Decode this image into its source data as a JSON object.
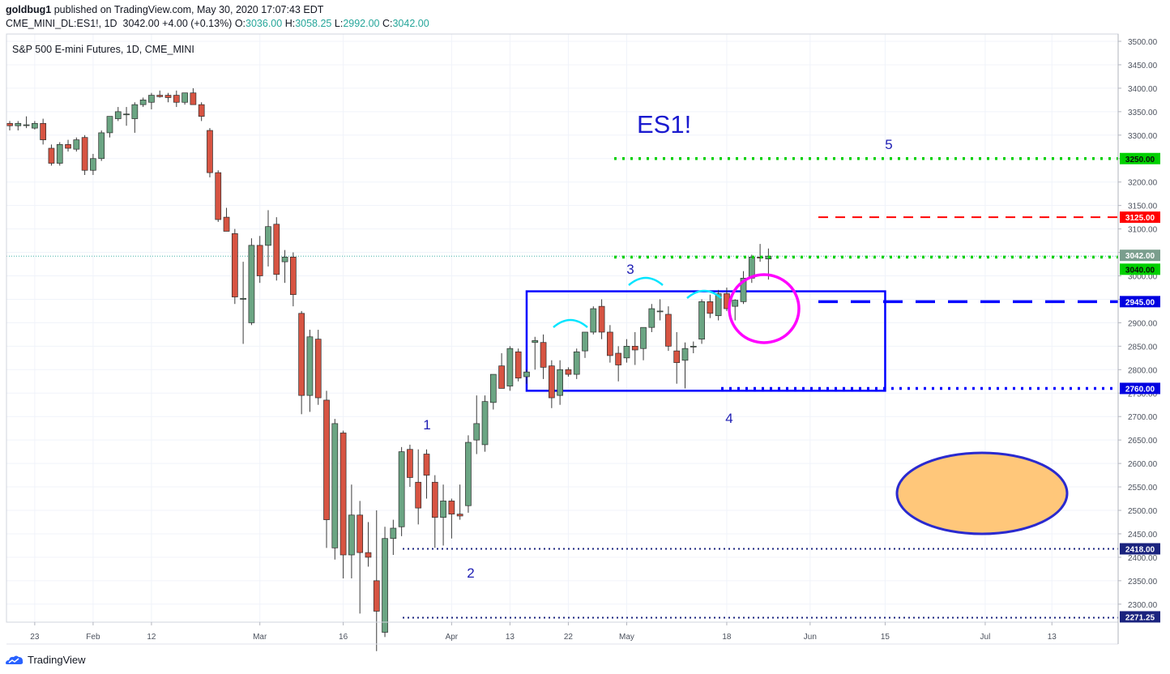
{
  "header": {
    "author": "goldbug1",
    "published_text": "published on TradingView.com, May 30, 2020 17:07:43 EDT",
    "symbol_line": "CME_MINI_DL:ES1!, 1D",
    "last": "3042.00",
    "change": "+4.00 (+0.13%)",
    "o_label": "O:",
    "o_val": "3036.00",
    "h_label": "H:",
    "h_val": "3058.25",
    "l_label": "L:",
    "l_val": "2992.00",
    "c_label": "C:",
    "c_val": "3042.00"
  },
  "footer": {
    "brand": "TradingView"
  },
  "colors": {
    "up": "#6ba583",
    "down": "#d75442",
    "blue": "#0000ff",
    "darkblue": "#1d1dbf",
    "green": "#00d000",
    "red": "#ff0000",
    "cyan": "#00e5ff",
    "magenta": "#ff00ff",
    "orange": "#ffc77a"
  },
  "chart_data": {
    "type": "candlestick",
    "title": "S&P 500 E-mini Futures, 1D, CME_MINI",
    "annotation_title": "ES1!",
    "y_axis": {
      "ylim": [
        2283,
        3513
      ],
      "ticks": [
        2300,
        2350,
        2400,
        2450,
        2500,
        2550,
        2600,
        2650,
        2700,
        2750,
        2800,
        2850,
        2900,
        2950,
        3000,
        3050,
        3100,
        3150,
        3200,
        3250,
        3300,
        3350,
        3400,
        3450,
        3500
      ],
      "tick_labels": [
        "2300.00",
        "2350.00",
        "2400.00",
        "2450.00",
        "2500.00",
        "2550.00",
        "2600.00",
        "2650.00",
        "2700.00",
        "2750.00",
        "2800.00",
        "2850.00",
        "2900.00",
        "2950.00",
        "3000.00",
        "3050.00",
        "3100.00",
        "3150.00",
        "3200.00",
        "3250.00",
        "3300.00",
        "3350.00",
        "3400.00",
        "3450.00",
        "3500.00"
      ]
    },
    "x_axis": {
      "labels": [
        {
          "text": "23",
          "index": 3
        },
        {
          "text": "Feb",
          "index": 10
        },
        {
          "text": "12",
          "index": 17
        },
        {
          "text": "Mar",
          "index": 30
        },
        {
          "text": "16",
          "index": 40
        },
        {
          "text": "Apr",
          "index": 53
        },
        {
          "text": "13",
          "index": 60
        },
        {
          "text": "22",
          "index": 67
        },
        {
          "text": "May",
          "index": 74
        },
        {
          "text": "18",
          "index": 86
        },
        {
          "text": "Jun",
          "index": 96
        },
        {
          "text": "15",
          "index": 105
        },
        {
          "text": "Jul",
          "index": 117
        },
        {
          "text": "13",
          "index": 125
        }
      ],
      "last_index": 127
    },
    "candles": [
      {
        "o": 3325,
        "h": 3330,
        "l": 3310,
        "c": 3320
      },
      {
        "o": 3320,
        "h": 3330,
        "l": 3310,
        "c": 3325
      },
      {
        "o": 3322,
        "h": 3340,
        "l": 3315,
        "c": 3322
      },
      {
        "o": 3315,
        "h": 3330,
        "l": 3312,
        "c": 3325
      },
      {
        "o": 3325,
        "h": 3335,
        "l": 3280,
        "c": 3290
      },
      {
        "o": 3272,
        "h": 3280,
        "l": 3235,
        "c": 3240
      },
      {
        "o": 3240,
        "h": 3285,
        "l": 3235,
        "c": 3280
      },
      {
        "o": 3280,
        "h": 3290,
        "l": 3265,
        "c": 3272
      },
      {
        "o": 3270,
        "h": 3295,
        "l": 3265,
        "c": 3290
      },
      {
        "o": 3295,
        "h": 3300,
        "l": 3215,
        "c": 3225
      },
      {
        "o": 3225,
        "h": 3260,
        "l": 3215,
        "c": 3250
      },
      {
        "o": 3250,
        "h": 3310,
        "l": 3245,
        "c": 3305
      },
      {
        "o": 3305,
        "h": 3340,
        "l": 3295,
        "c": 3340
      },
      {
        "o": 3335,
        "h": 3360,
        "l": 3330,
        "c": 3350
      },
      {
        "o": 3345,
        "h": 3360,
        "l": 3320,
        "c": 3345
      },
      {
        "o": 3335,
        "h": 3370,
        "l": 3305,
        "c": 3365
      },
      {
        "o": 3365,
        "h": 3380,
        "l": 3360,
        "c": 3375
      },
      {
        "o": 3370,
        "h": 3390,
        "l": 3355,
        "c": 3385
      },
      {
        "o": 3385,
        "h": 3395,
        "l": 3380,
        "c": 3382
      },
      {
        "o": 3385,
        "h": 3390,
        "l": 3370,
        "c": 3380
      },
      {
        "o": 3385,
        "h": 3395,
        "l": 3360,
        "c": 3370
      },
      {
        "o": 3370,
        "h": 3390,
        "l": 3365,
        "c": 3390
      },
      {
        "o": 3390,
        "h": 3400,
        "l": 3365,
        "c": 3365
      },
      {
        "o": 3365,
        "h": 3370,
        "l": 3330,
        "c": 3340
      },
      {
        "o": 3310,
        "h": 3315,
        "l": 3210,
        "c": 3220
      },
      {
        "o": 3220,
        "h": 3225,
        "l": 3115,
        "c": 3120
      },
      {
        "o": 3125,
        "h": 3145,
        "l": 3095,
        "c": 3095
      },
      {
        "o": 3090,
        "h": 3100,
        "l": 2940,
        "c": 2955
      },
      {
        "o": 2950,
        "h": 3030,
        "l": 2855,
        "c": 2952
      },
      {
        "o": 2900,
        "h": 3080,
        "l": 2895,
        "c": 3065
      },
      {
        "o": 3065,
        "h": 3085,
        "l": 2985,
        "c": 3000
      },
      {
        "o": 3065,
        "h": 3140,
        "l": 3020,
        "c": 3105
      },
      {
        "o": 3110,
        "h": 3125,
        "l": 2990,
        "c": 3003
      },
      {
        "o": 3030,
        "h": 3055,
        "l": 2985,
        "c": 3040
      },
      {
        "o": 3040,
        "h": 3050,
        "l": 2935,
        "c": 2960
      },
      {
        "o": 2920,
        "h": 2925,
        "l": 2705,
        "c": 2745
      },
      {
        "o": 2745,
        "h": 2885,
        "l": 2710,
        "c": 2870
      },
      {
        "o": 2865,
        "h": 2885,
        "l": 2725,
        "c": 2740
      },
      {
        "o": 2735,
        "h": 2755,
        "l": 2420,
        "c": 2480
      },
      {
        "o": 2420,
        "h": 2695,
        "l": 2395,
        "c": 2685
      },
      {
        "o": 2665,
        "h": 2670,
        "l": 2355,
        "c": 2405
      },
      {
        "o": 2405,
        "h": 2555,
        "l": 2355,
        "c": 2490
      },
      {
        "o": 2490,
        "h": 2520,
        "l": 2280,
        "c": 2410
      },
      {
        "o": 2410,
        "h": 2475,
        "l": 2380,
        "c": 2400
      },
      {
        "o": 2350,
        "h": 2500,
        "l": 2200,
        "c": 2285
      },
      {
        "o": 2240,
        "h": 2465,
        "l": 2230,
        "c": 2440
      },
      {
        "o": 2440,
        "h": 2480,
        "l": 2405,
        "c": 2462
      },
      {
        "o": 2465,
        "h": 2635,
        "l": 2445,
        "c": 2625
      },
      {
        "o": 2630,
        "h": 2640,
        "l": 2550,
        "c": 2570
      },
      {
        "o": 2560,
        "h": 2630,
        "l": 2470,
        "c": 2505
      },
      {
        "o": 2620,
        "h": 2630,
        "l": 2525,
        "c": 2575
      },
      {
        "o": 2560,
        "h": 2575,
        "l": 2420,
        "c": 2485
      },
      {
        "o": 2485,
        "h": 2555,
        "l": 2425,
        "c": 2520
      },
      {
        "o": 2520,
        "h": 2525,
        "l": 2440,
        "c": 2492
      },
      {
        "o": 2492,
        "h": 2555,
        "l": 2480,
        "c": 2488
      },
      {
        "o": 2510,
        "h": 2660,
        "l": 2495,
        "c": 2645
      },
      {
        "o": 2650,
        "h": 2745,
        "l": 2620,
        "c": 2685
      },
      {
        "o": 2640,
        "h": 2745,
        "l": 2625,
        "c": 2732
      },
      {
        "o": 2730,
        "h": 2790,
        "l": 2715,
        "c": 2790
      },
      {
        "o": 2808,
        "h": 2835,
        "l": 2760,
        "c": 2760
      },
      {
        "o": 2765,
        "h": 2850,
        "l": 2755,
        "c": 2845
      },
      {
        "o": 2838,
        "h": 2845,
        "l": 2775,
        "c": 2782
      },
      {
        "o": 2785,
        "h": 2800,
        "l": 2770,
        "c": 2795
      },
      {
        "o": 2858,
        "h": 2870,
        "l": 2800,
        "c": 2862
      },
      {
        "o": 2858,
        "h": 2875,
        "l": 2780,
        "c": 2805
      },
      {
        "o": 2808,
        "h": 2820,
        "l": 2718,
        "c": 2740
      },
      {
        "o": 2745,
        "h": 2820,
        "l": 2725,
        "c": 2800
      },
      {
        "o": 2800,
        "h": 2805,
        "l": 2785,
        "c": 2790
      },
      {
        "o": 2790,
        "h": 2845,
        "l": 2780,
        "c": 2838
      },
      {
        "o": 2840,
        "h": 2875,
        "l": 2825,
        "c": 2880
      },
      {
        "o": 2880,
        "h": 2935,
        "l": 2875,
        "c": 2930
      },
      {
        "o": 2935,
        "h": 2950,
        "l": 2865,
        "c": 2880
      },
      {
        "o": 2880,
        "h": 2895,
        "l": 2815,
        "c": 2830
      },
      {
        "o": 2835,
        "h": 2850,
        "l": 2775,
        "c": 2810
      },
      {
        "o": 2825,
        "h": 2865,
        "l": 2815,
        "c": 2850
      },
      {
        "o": 2850,
        "h": 2880,
        "l": 2810,
        "c": 2842
      },
      {
        "o": 2845,
        "h": 2880,
        "l": 2820,
        "c": 2890
      },
      {
        "o": 2890,
        "h": 2940,
        "l": 2880,
        "c": 2930
      },
      {
        "o": 2925,
        "h": 2950,
        "l": 2905,
        "c": 2925
      },
      {
        "o": 2918,
        "h": 2935,
        "l": 2840,
        "c": 2850
      },
      {
        "o": 2840,
        "h": 2880,
        "l": 2770,
        "c": 2815
      },
      {
        "o": 2820,
        "h": 2858,
        "l": 2760,
        "c": 2845
      },
      {
        "o": 2850,
        "h": 2860,
        "l": 2835,
        "c": 2850
      },
      {
        "o": 2865,
        "h": 2950,
        "l": 2855,
        "c": 2945
      },
      {
        "o": 2945,
        "h": 2960,
        "l": 2910,
        "c": 2920
      },
      {
        "o": 2915,
        "h": 2970,
        "l": 2905,
        "c": 2962
      },
      {
        "o": 2962,
        "h": 2975,
        "l": 2925,
        "c": 2930
      },
      {
        "o": 2935,
        "h": 2950,
        "l": 2905,
        "c": 2948
      },
      {
        "o": 2945,
        "h": 3010,
        "l": 2940,
        "c": 2995
      },
      {
        "o": 2995,
        "h": 3045,
        "l": 2985,
        "c": 3040
      },
      {
        "o": 3040,
        "h": 3068,
        "l": 3030,
        "c": 3038
      },
      {
        "o": 3036,
        "h": 3058.25,
        "l": 2992,
        "c": 3042
      }
    ],
    "levels": [
      {
        "label": "3250.00",
        "value": 3250,
        "style": "green-dotted"
      },
      {
        "label": "3125.00",
        "value": 3125,
        "style": "red-dashed"
      },
      {
        "label": "3042.00",
        "value": 3042,
        "style": "last-price"
      },
      {
        "label": "3040.00",
        "value": 3040,
        "style": "green-dotted"
      },
      {
        "label": "2945.00",
        "value": 2945,
        "style": "blue-dashed"
      },
      {
        "label": "2760.00",
        "value": 2760,
        "style": "blue-dotted"
      },
      {
        "label": "2418.00",
        "value": 2418,
        "style": "navy-dotted"
      },
      {
        "label": "2271.25",
        "value": 2271.25,
        "style": "navy-dotted"
      }
    ],
    "rectangle": {
      "x_start": 62,
      "x_end": 105,
      "top": 2967,
      "bottom": 2755
    },
    "wave_labels": [
      "1",
      "2",
      "3",
      "4",
      "5"
    ]
  }
}
